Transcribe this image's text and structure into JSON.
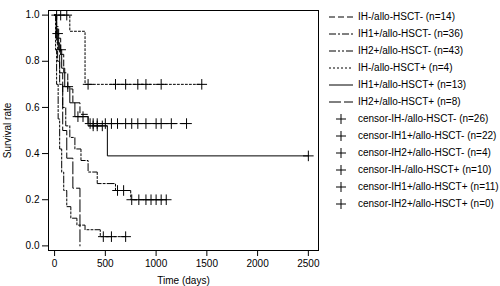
{
  "chart_data": {
    "type": "line",
    "xlabel": "Time (days)",
    "ylabel": "Survival rate",
    "xlim": [
      -60,
      2600
    ],
    "ylim": [
      -0.02,
      1.02
    ],
    "xticks": [
      0,
      500,
      1000,
      1500,
      2000,
      2500
    ],
    "yticks": [
      {
        "value": 0,
        "label": "0.0"
      },
      {
        "value": 0.2,
        "label": "0.2"
      },
      {
        "value": 0.4,
        "label": "0.4"
      },
      {
        "value": 0.6,
        "label": "0.6"
      },
      {
        "value": 0.8,
        "label": "0.8"
      },
      {
        "value": 1,
        "label": "1.0"
      }
    ],
    "grid": false,
    "legend": "right",
    "series": [
      {
        "name": "IH-/allo-HSCT- (n=14)",
        "color": "#000000",
        "line_style": "dashed",
        "x": [
          0,
          20,
          40,
          60,
          90,
          130,
          180,
          250,
          330,
          1300
        ],
        "values": [
          1,
          0.95,
          0.9,
          0.83,
          0.75,
          0.68,
          0.62,
          0.57,
          0.53,
          0.53
        ]
      },
      {
        "name": "IH1+/allo-HSCT- (n=36)",
        "color": "#000000",
        "line_style": "dashdot",
        "x": [
          0,
          15,
          30,
          50,
          80,
          110,
          150,
          200,
          260,
          330,
          420,
          600,
          750,
          1100
        ],
        "values": [
          1,
          0.9,
          0.8,
          0.7,
          0.6,
          0.52,
          0.47,
          0.42,
          0.37,
          0.32,
          0.27,
          0.24,
          0.2,
          0.2
        ]
      },
      {
        "name": "IH2+/allo-HSCT- (n=43)",
        "color": "#000000",
        "line_style": "dashdotdot",
        "x": [
          0,
          10,
          20,
          35,
          50,
          70,
          90,
          120,
          160,
          220,
          300,
          450,
          700
        ],
        "values": [
          1,
          0.85,
          0.7,
          0.55,
          0.42,
          0.32,
          0.24,
          0.17,
          0.12,
          0.09,
          0.07,
          0.04,
          0.04
        ]
      },
      {
        "name": "IH-/allo-HSCT+ (n=4)",
        "color": "#000000",
        "line_style": "dotted",
        "x": [
          0,
          150,
          300,
          1450
        ],
        "values": [
          1,
          0.93,
          0.7,
          0.7
        ]
      },
      {
        "name": "IH1+/allo-HSCT+ (n=13)",
        "color": "#000000",
        "line_style": "solid",
        "x": [
          0,
          20,
          40,
          70,
          100,
          150,
          200,
          330,
          520,
          2500
        ],
        "values": [
          1,
          0.92,
          0.85,
          0.77,
          0.69,
          0.62,
          0.56,
          0.52,
          0.39,
          0.39
        ]
      },
      {
        "name": "IH2+/allo-HSCT+ (n=8)",
        "color": "#000000",
        "line_style": "longdash",
        "x": [
          0,
          20,
          50,
          80,
          120,
          180,
          250
        ],
        "values": [
          1,
          0.88,
          0.75,
          0.5,
          0.38,
          0.25,
          0
        ]
      }
    ],
    "censor_series": [
      {
        "name": "censor-IH-/allo-HSCT- (n=26)",
        "color": "#000000",
        "marker": "plus",
        "x": [
          350,
          380,
          420,
          500,
          560,
          620,
          700,
          760,
          820,
          900,
          1000,
          1050,
          1150,
          1300
        ],
        "values": [
          0.53,
          0.53,
          0.53,
          0.53,
          0.53,
          0.53,
          0.53,
          0.53,
          0.53,
          0.53,
          0.53,
          0.53,
          0.53,
          0.53
        ]
      },
      {
        "name": "censor-IH1+/allo-HSCT- (n=22)",
        "color": "#000000",
        "marker": "plus",
        "x": [
          620,
          680,
          760,
          830,
          900,
          950,
          1000,
          1050,
          1100
        ],
        "values": [
          0.24,
          0.24,
          0.2,
          0.2,
          0.2,
          0.2,
          0.2,
          0.2,
          0.2
        ]
      },
      {
        "name": "censor-IH2+/allo-HSCT- (n=4)",
        "color": "#000000",
        "marker": "plus",
        "x": [
          480,
          560,
          700
        ],
        "values": [
          0.04,
          0.04,
          0.04
        ]
      },
      {
        "name": "censor-IH-/allo-HSCT+ (n=10)",
        "color": "#000000",
        "marker": "plus",
        "x": [
          20,
          60,
          120,
          330,
          600,
          700,
          820,
          900,
          1050,
          1450
        ],
        "values": [
          1,
          1,
          1,
          0.7,
          0.7,
          0.7,
          0.7,
          0.7,
          0.7,
          0.7
        ]
      },
      {
        "name": "censor-IH1+/allo-HSCT+ (n=11)",
        "color": "#000000",
        "marker": "plus",
        "x": [
          30,
          60,
          130,
          230,
          280,
          380,
          420,
          470,
          2500
        ],
        "values": [
          0.92,
          0.85,
          0.69,
          0.56,
          0.56,
          0.52,
          0.52,
          0.52,
          0.39
        ]
      },
      {
        "name": "censor-IH2+/allo-HSCT+ (n=0)",
        "color": "#000000",
        "marker": "plus",
        "x": [],
        "values": []
      }
    ]
  }
}
